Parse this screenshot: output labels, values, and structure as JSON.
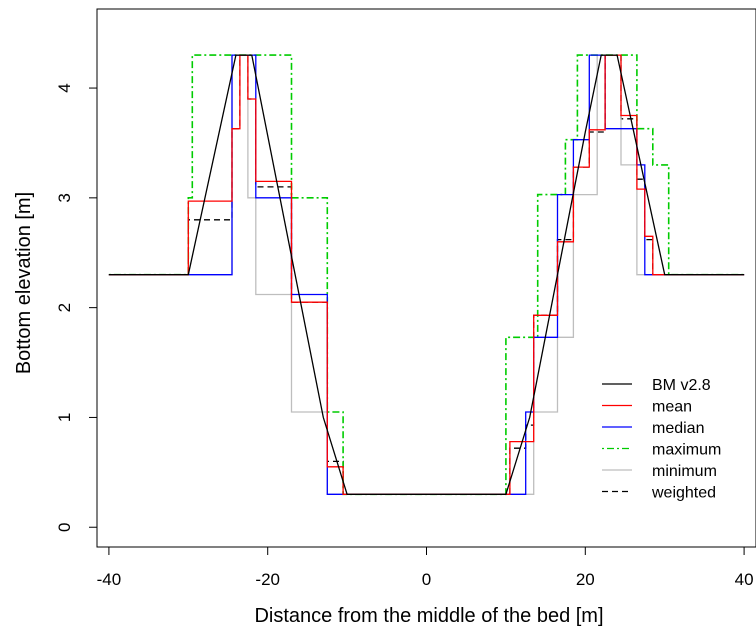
{
  "chart_data": {
    "type": "line",
    "title": "",
    "xlabel": "Distance from the middle of the bed [m]",
    "ylabel": "Bottom elevation  [m]",
    "xlim": [
      -41.5,
      41.5
    ],
    "ylim": [
      -0.18,
      4.72
    ],
    "xticks": [
      "-40",
      "-20",
      "0",
      "20",
      "40"
    ],
    "yticks": [
      "0",
      "1",
      "2",
      "3",
      "4"
    ],
    "xtick_values": [
      -40,
      -20,
      0,
      20,
      40
    ],
    "ytick_values": [
      0,
      1,
      2,
      3,
      4
    ],
    "legend_position": "bottom-right",
    "series": [
      {
        "name": "BM v2.8",
        "color": "#000000",
        "dash": "solid",
        "x": [
          -40,
          -30,
          -24,
          -23,
          -22,
          -13,
          -10,
          10,
          13,
          20,
          22,
          23,
          24,
          30,
          40
        ],
        "y": [
          2.3,
          2.3,
          4.3,
          4.3,
          4.3,
          1.0,
          0.3,
          0.3,
          1.0,
          3.6,
          4.3,
          4.3,
          4.3,
          2.3,
          2.3
        ]
      },
      {
        "name": "mean",
        "color": "#ff0000",
        "dash": "solid",
        "x": [
          -40,
          -30,
          -30,
          -24.5,
          -24.5,
          -23.5,
          -23.5,
          -22.5,
          -22.5,
          -21.5,
          -21.5,
          -17,
          -17,
          -12.5,
          -12.5,
          -10.5,
          -10.5,
          10.5,
          10.5,
          13.5,
          13.5,
          16.5,
          16.5,
          18.5,
          18.5,
          20.5,
          20.5,
          22.5,
          22.5,
          23.5,
          23.5,
          24.5,
          24.5,
          26.5,
          26.5,
          27.5,
          27.5,
          28.5,
          28.5,
          30.5,
          30.5,
          40
        ],
        "y": [
          2.3,
          2.3,
          2.97,
          2.97,
          3.63,
          3.63,
          4.3,
          4.3,
          3.9,
          3.9,
          3.15,
          3.15,
          2.05,
          2.05,
          0.55,
          0.55,
          0.3,
          0.3,
          0.78,
          0.78,
          1.93,
          1.93,
          2.6,
          2.6,
          3.28,
          3.28,
          3.62,
          3.62,
          4.3,
          4.3,
          4.3,
          4.3,
          3.75,
          3.75,
          3.08,
          3.08,
          2.65,
          2.65,
          2.3,
          2.3,
          2.3,
          2.3
        ]
      },
      {
        "name": "median",
        "color": "#0000ff",
        "dash": "solid",
        "x": [
          -40,
          -24.5,
          -24.5,
          -23.5,
          -23.5,
          -22.5,
          -22.5,
          -21.5,
          -21.5,
          -17,
          -17,
          -12.5,
          -12.5,
          -10.5,
          -10.5,
          10.5,
          10.5,
          12.5,
          12.5,
          13.5,
          13.5,
          14.5,
          14.5,
          16.5,
          16.5,
          18.5,
          18.5,
          20.5,
          20.5,
          22.5,
          22.5,
          24.5,
          24.5,
          26.5,
          26.5,
          27.5,
          27.5,
          28.5,
          28.5,
          40
        ],
        "y": [
          2.3,
          2.3,
          4.3,
          4.3,
          4.3,
          4.3,
          4.3,
          4.3,
          3.0,
          3.0,
          2.12,
          2.12,
          0.3,
          0.3,
          0.3,
          0.3,
          0.3,
          0.3,
          1.05,
          1.05,
          1.73,
          1.73,
          1.73,
          1.73,
          3.03,
          3.03,
          3.53,
          3.53,
          4.3,
          4.3,
          3.63,
          3.63,
          3.63,
          3.63,
          3.3,
          3.3,
          2.3,
          2.3,
          2.3,
          2.3
        ]
      },
      {
        "name": "maximum",
        "color": "#00cc00",
        "dash": "dotdash",
        "x": [
          -40,
          -30,
          -30,
          -29.5,
          -29.5,
          -17,
          -17,
          -12.5,
          -12.5,
          -10.5,
          -10.5,
          10,
          10,
          14,
          14,
          17.5,
          17.5,
          19,
          19,
          21,
          21,
          26.5,
          26.5,
          28.5,
          28.5,
          30.5,
          30.5,
          40
        ],
        "y": [
          2.3,
          2.3,
          3.0,
          3.0,
          4.3,
          4.3,
          3.0,
          3.0,
          1.05,
          1.05,
          0.3,
          0.3,
          1.73,
          1.73,
          3.03,
          3.03,
          3.53,
          3.53,
          4.3,
          4.3,
          4.3,
          4.3,
          3.63,
          3.63,
          3.3,
          3.3,
          2.3,
          2.3
        ]
      },
      {
        "name": "minimum",
        "color": "#bebebe",
        "dash": "solid",
        "x": [
          -40,
          -24.5,
          -24.5,
          -22.5,
          -22.5,
          -21.5,
          -21.5,
          -17,
          -17,
          -12.5,
          -12.5,
          13.5,
          13.5,
          16.5,
          16.5,
          18.5,
          18.5,
          21.5,
          21.5,
          24.5,
          24.5,
          26.5,
          26.5,
          40
        ],
        "y": [
          2.3,
          2.3,
          4.3,
          4.3,
          3.0,
          3.0,
          2.12,
          2.12,
          1.05,
          1.05,
          0.3,
          0.3,
          1.05,
          1.05,
          1.73,
          1.73,
          3.03,
          3.03,
          4.3,
          4.3,
          3.3,
          3.3,
          2.3,
          2.3
        ]
      },
      {
        "name": "weighted",
        "color": "#000000",
        "dash": "dashed",
        "x": [
          -40,
          -30,
          -30,
          -24.5,
          -24.5,
          -23.5,
          -23.5,
          -22.5,
          -22.5,
          -21.5,
          -21.5,
          -17,
          -17,
          -12.5,
          -12.5,
          -10.5,
          -10.5,
          10.5,
          10.5,
          12.5,
          12.5,
          13.5,
          13.5,
          14.5,
          14.5,
          16.5,
          16.5,
          18.5,
          18.5,
          20.5,
          20.5,
          22.5,
          22.5,
          24.5,
          24.5,
          26.5,
          26.5,
          27.5,
          27.5,
          28.5,
          28.5,
          30.5,
          30.5,
          40
        ],
        "y": [
          2.3,
          2.3,
          2.8,
          2.8,
          3.63,
          3.63,
          4.3,
          4.3,
          3.9,
          3.9,
          3.1,
          3.1,
          2.05,
          2.05,
          0.6,
          0.6,
          0.3,
          0.3,
          0.72,
          0.72,
          0.93,
          0.93,
          1.93,
          1.93,
          1.93,
          1.93,
          2.62,
          2.62,
          3.28,
          3.28,
          3.6,
          3.6,
          4.3,
          4.3,
          3.72,
          3.72,
          3.17,
          3.17,
          2.62,
          2.62,
          2.3,
          2.3,
          2.3,
          2.3
        ]
      }
    ]
  }
}
